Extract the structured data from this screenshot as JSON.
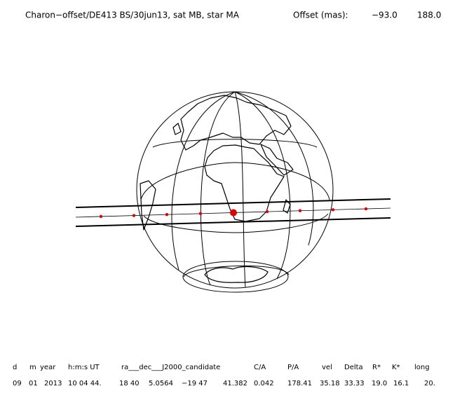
{
  "header": {
    "title": "Charon−offset/DE413 BS/30jun13, sat MB, star MA",
    "offset_label": "Offset (mas):",
    "offset_values": [
      "−93.0",
      "188.0"
    ]
  },
  "table": {
    "columns": [
      "d",
      "m",
      "year",
      "h:m:s UT",
      "ra___dec___J2000_candidate",
      "C/A",
      "P/A",
      "vel",
      "Delta",
      "R*",
      "K*",
      "long"
    ],
    "rows": [
      [
        "09",
        "01",
        "2013",
        "10 04 44.",
        "18 40",
        "5.0564",
        "−19 47",
        "41.382",
        "0.042",
        "178.41",
        "35.18",
        "33.33",
        "19.0",
        "16.1",
        "20."
      ]
    ]
  }
}
